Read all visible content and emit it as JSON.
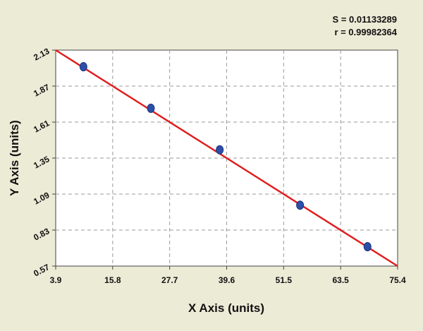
{
  "chart_data": {
    "type": "scatter",
    "xlabel": "X Axis (units)",
    "ylabel": "Y Axis (units)",
    "xlim": [
      3.9,
      75.4
    ],
    "ylim": [
      0.57,
      2.13
    ],
    "x_ticks": [
      "3.9",
      "15.8",
      "27.7",
      "39.6",
      "51.5",
      "63.5",
      "75.4"
    ],
    "y_ticks": [
      "0.57",
      "0.83",
      "1.09",
      "1.35",
      "1.61",
      "1.87",
      "2.13"
    ],
    "grid": true,
    "stats": {
      "s_label": "S = 0.01133289",
      "r_label": "r = 0.99982364"
    },
    "series": [
      {
        "points": [
          {
            "x": 9.7,
            "y": 2.01
          },
          {
            "x": 23.8,
            "y": 1.71
          },
          {
            "x": 38.2,
            "y": 1.41
          },
          {
            "x": 55.0,
            "y": 1.01
          },
          {
            "x": 69.1,
            "y": 0.71
          }
        ],
        "color": "#2d4fa8"
      }
    ],
    "fit_line": {
      "x": [
        3.9,
        75.4
      ],
      "y": [
        2.13,
        0.57
      ],
      "color": "#e01b1b"
    }
  }
}
